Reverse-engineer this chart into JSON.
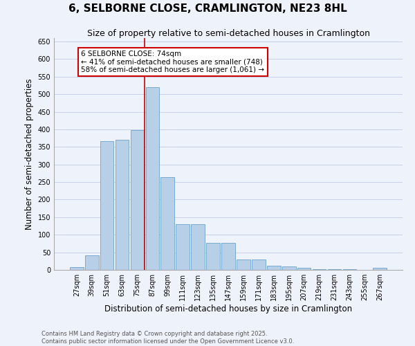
{
  "title": "6, SELBORNE CLOSE, CRAMLINGTON, NE23 8HL",
  "subtitle": "Size of property relative to semi-detached houses in Cramlington",
  "xlabel": "Distribution of semi-detached houses by size in Cramlington",
  "ylabel": "Number of semi-detached properties",
  "bar_color": "#b8cfe8",
  "bar_edge_color": "#7aaad0",
  "background_color": "#eef2fb",
  "grid_color": "#c8d0e8",
  "categories": [
    "27sqm",
    "39sqm",
    "51sqm",
    "63sqm",
    "75sqm",
    "87sqm",
    "99sqm",
    "111sqm",
    "123sqm",
    "135sqm",
    "147sqm",
    "159sqm",
    "171sqm",
    "183sqm",
    "195sqm",
    "207sqm",
    "219sqm",
    "231sqm",
    "243sqm",
    "255sqm",
    "267sqm"
  ],
  "values": [
    8,
    42,
    367,
    370,
    397,
    521,
    264,
    130,
    130,
    77,
    77,
    30,
    30,
    12,
    10,
    5,
    2,
    1,
    1,
    0,
    5
  ],
  "vline_index": 4,
  "vline_color": "#cc0000",
  "annotation_text": "6 SELBORNE CLOSE: 74sqm\n← 41% of semi-detached houses are smaller (748)\n58% of semi-detached houses are larger (1,061) →",
  "annotation_box_color": "#ffffff",
  "annotation_box_edge": "#cc0000",
  "ylim": [
    0,
    660
  ],
  "yticks": [
    0,
    50,
    100,
    150,
    200,
    250,
    300,
    350,
    400,
    450,
    500,
    550,
    600,
    650
  ],
  "footnote": "Contains HM Land Registry data © Crown copyright and database right 2025.\nContains public sector information licensed under the Open Government Licence v3.0.",
  "title_fontsize": 11,
  "subtitle_fontsize": 9,
  "axis_label_fontsize": 8.5,
  "tick_fontsize": 7,
  "annotation_fontsize": 7.5,
  "footnote_fontsize": 6
}
